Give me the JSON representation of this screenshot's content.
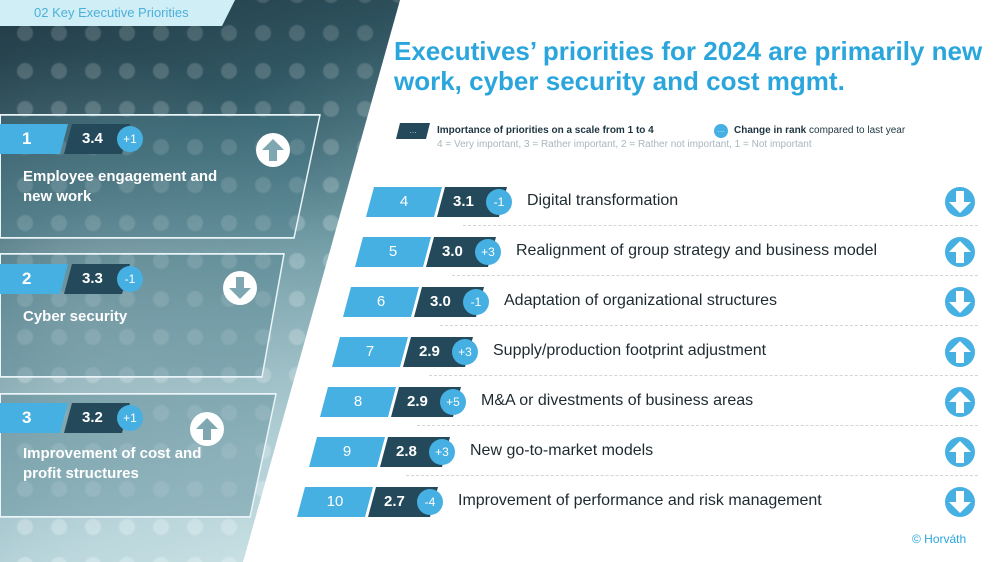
{
  "section_tab": "02 Key Executive Priorities",
  "title": "Executives’ priorities for 2024 are primarily new work, cyber security and cost mgmt.",
  "legend": {
    "box_glyph": "...",
    "importance_label": "Importance of priorities on a scale from 1 to 4",
    "scale_note": "4 = Very important, 3 = Rather important, 2 = Rather not important, 1 = Not important",
    "dot_glyph": "...",
    "change_bold": "Change in rank",
    "change_rest": " compared to last year"
  },
  "top_priorities": [
    {
      "rank": "1",
      "score": "3.4",
      "change": "+1",
      "direction": "up",
      "title": "Employee engagement and new work"
    },
    {
      "rank": "2",
      "score": "3.3",
      "change": "-1",
      "direction": "down",
      "title": "Cyber security"
    },
    {
      "rank": "3",
      "score": "3.2",
      "change": "+1",
      "direction": "up",
      "title": "Improvement of cost and profit structures"
    }
  ],
  "priorities": [
    {
      "rank": "4",
      "score": "3.1",
      "change": "-1",
      "direction": "down",
      "label": "Digital transformation"
    },
    {
      "rank": "5",
      "score": "3.0",
      "change": "+3",
      "direction": "up",
      "label": "Realignment of group strategy and business model"
    },
    {
      "rank": "6",
      "score": "3.0",
      "change": "-1",
      "direction": "down",
      "label": "Adaptation of organizational structures"
    },
    {
      "rank": "7",
      "score": "2.9",
      "change": "+3",
      "direction": "up",
      "label": "Supply/production footprint adjustment"
    },
    {
      "rank": "8",
      "score": "2.9",
      "change": "+5",
      "direction": "up",
      "label": "M&A or divestments of business areas"
    },
    {
      "rank": "9",
      "score": "2.8",
      "change": "+3",
      "direction": "up",
      "label": "New go-to-market models"
    },
    {
      "rank": "10",
      "score": "2.7",
      "change": "-4",
      "direction": "down",
      "label": "Improvement of performance and risk management"
    }
  ],
  "copyright": "© Horváth",
  "colors": {
    "accent": "#46b0e2",
    "dark": "#24495a",
    "title": "#2aa6dc"
  },
  "icons": {
    "up": "arrow-up-circle-icon",
    "down": "arrow-down-circle-icon"
  }
}
